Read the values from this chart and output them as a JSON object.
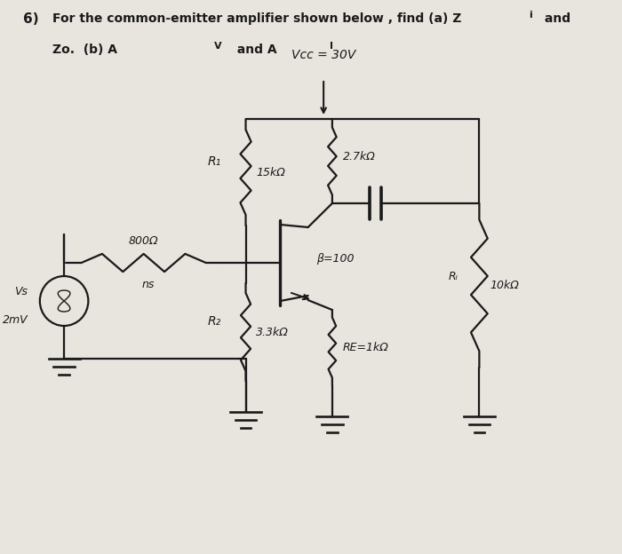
{
  "bg_color": "#e8e4de",
  "line_color": "#1a1a1a",
  "lw": 1.6,
  "fig_w": 7.0,
  "fig_h": 6.24,
  "dpi": 100,
  "header_line1": "6)   For the common-emitter amplifier shown below , find (a) Z",
  "header_z1": "i",
  "header_and": " and",
  "header_line2_a": "Zo.  (b) A",
  "header_line2_v": "V",
  "header_line2_b": "  and A",
  "header_line2_i": "I",
  "vcc_text": "Vcc = 30V",
  "r1_text": "15kΩ",
  "r1_label": "R₁",
  "r2_text": "3.3kΩ",
  "r2_label": "R₂",
  "rc_text": "2.7kΩ",
  "re_text": "RE=1kΩ",
  "rl_text": "10kΩ",
  "rl_label": "Rₗ",
  "rs_text": "800Ω",
  "rs_label": "ns",
  "beta_text": "β=100",
  "vs_text": "Vs",
  "vs_val": "2mV"
}
